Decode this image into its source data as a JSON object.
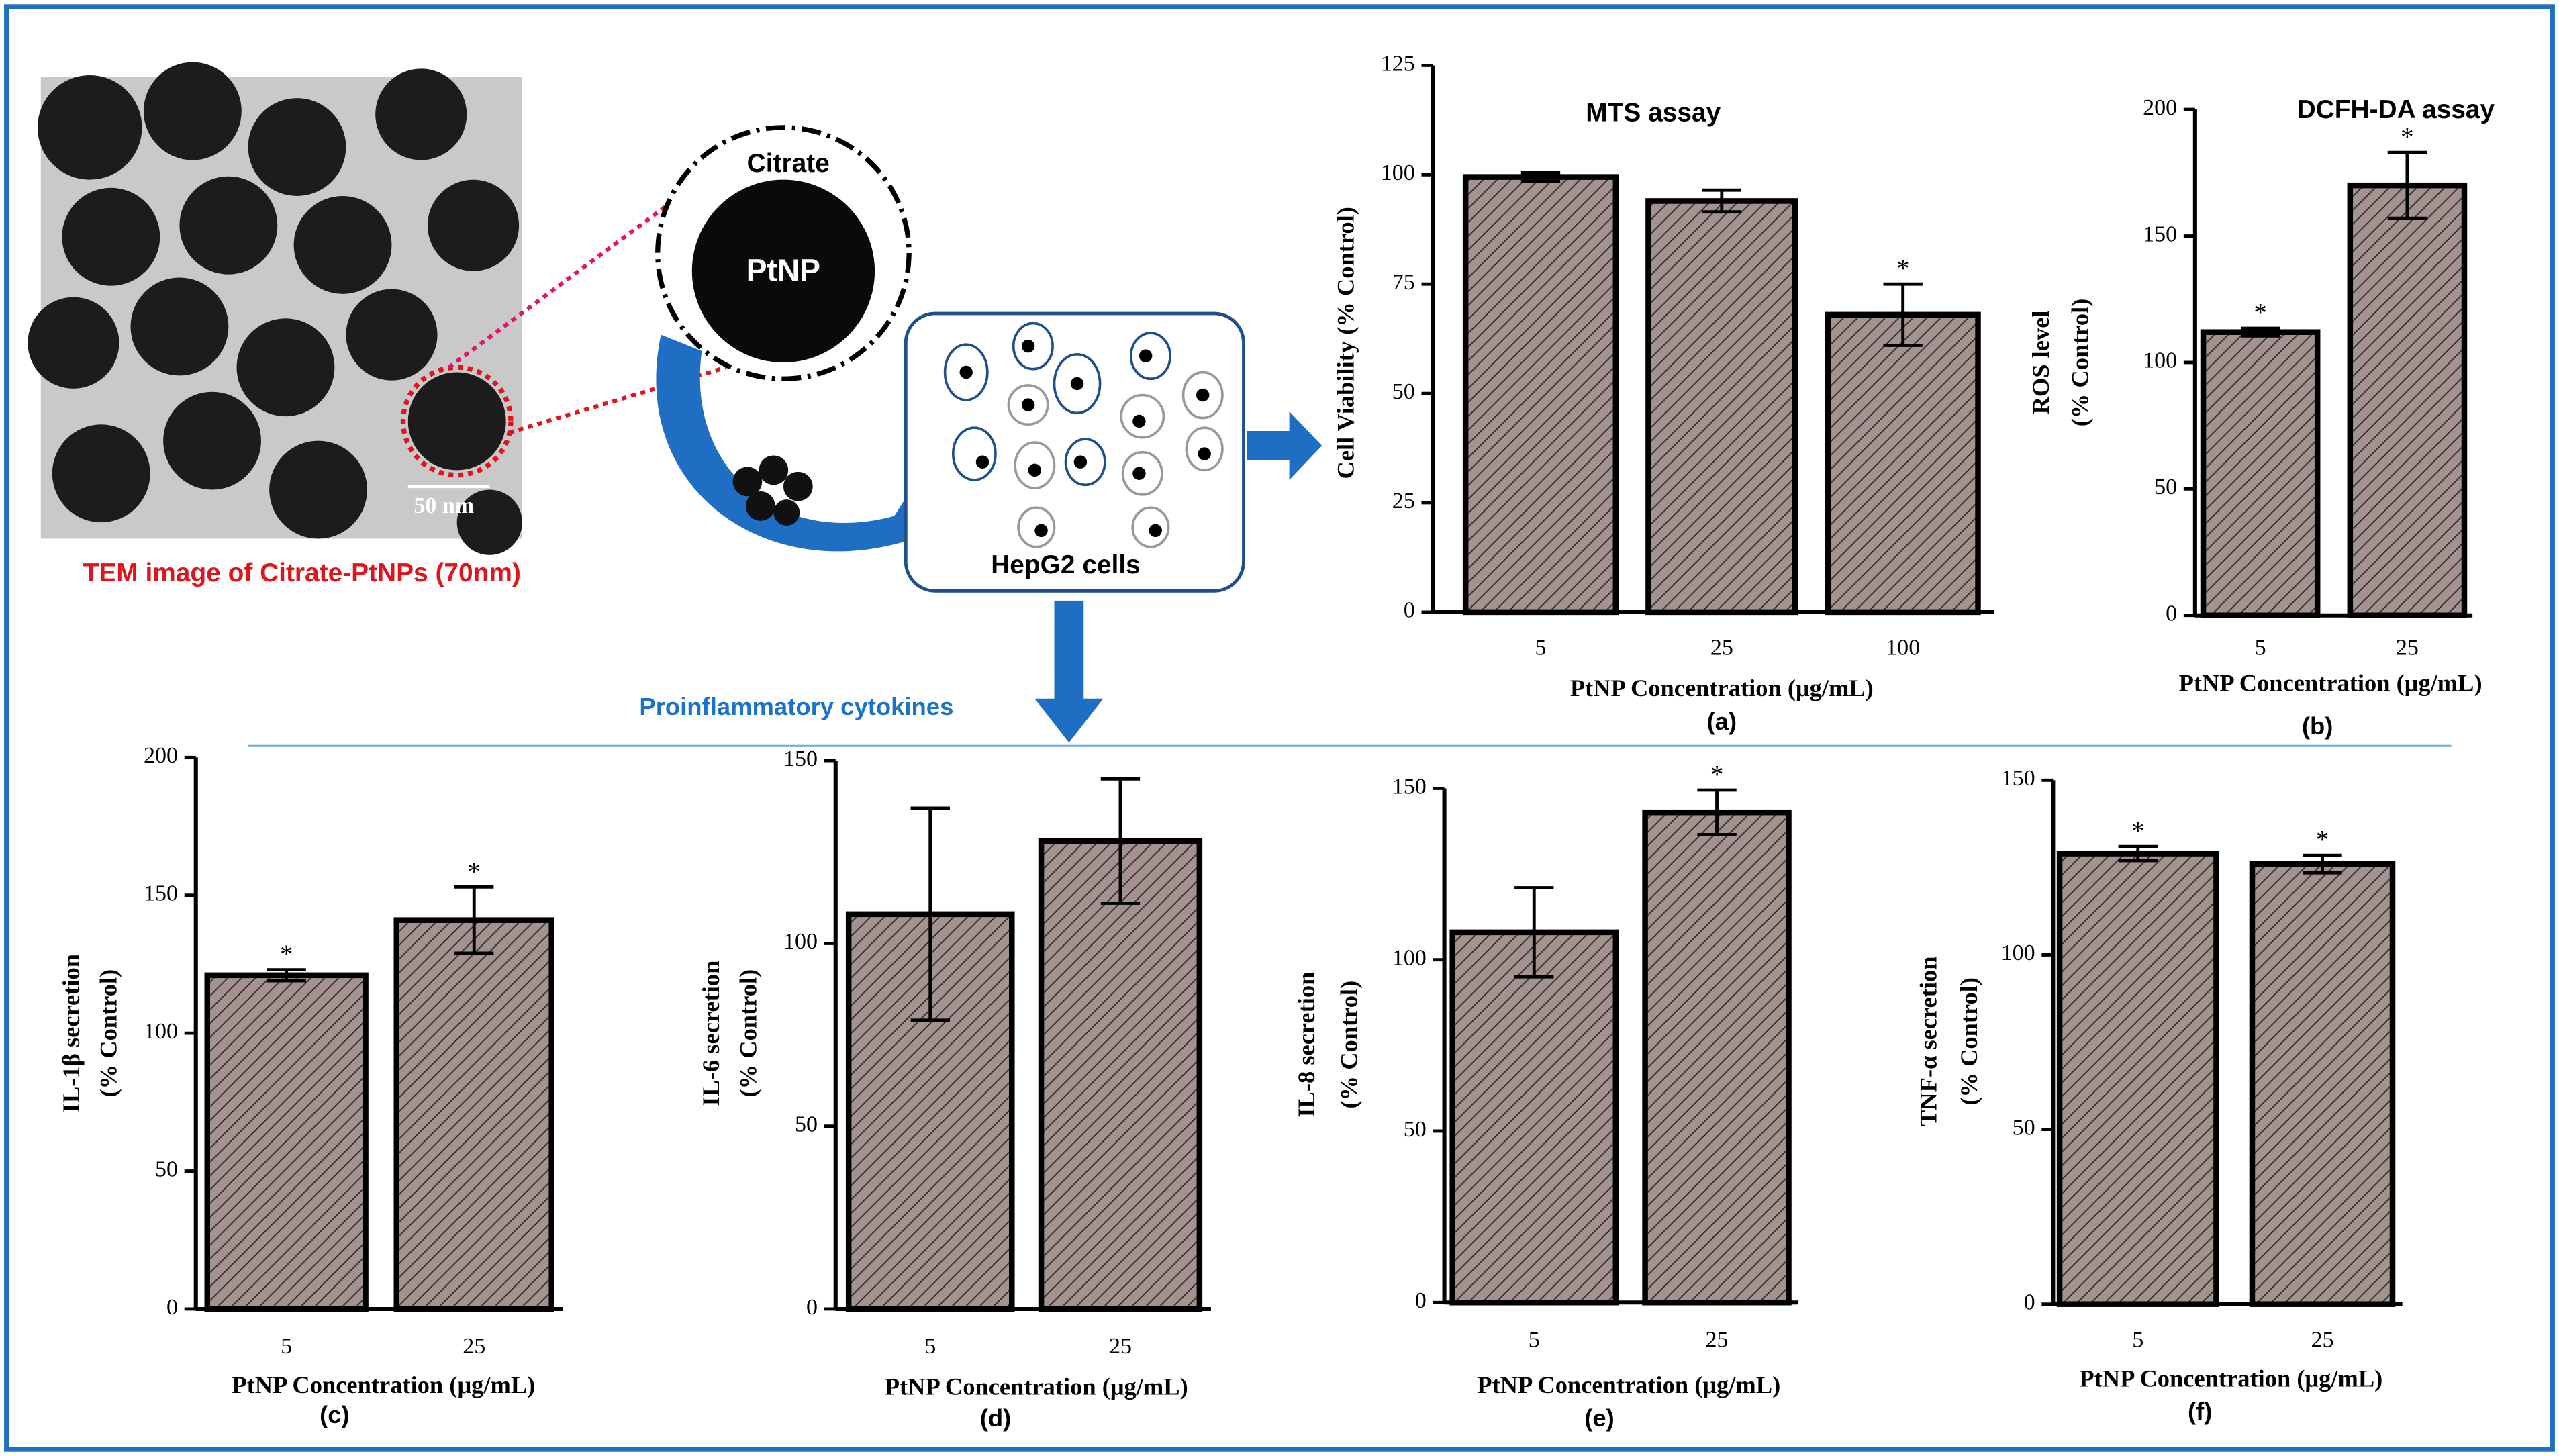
{
  "diagram": {
    "tem_caption": "TEM image of Citrate-PtNPs (70nm)",
    "scale_bar": "50 nm",
    "shell_label": "Citrate",
    "core_label": "PtNP",
    "cells_label": "HepG2 cells",
    "section_label": "Proinflammatory cytokines"
  },
  "chart_data": [
    {
      "type": "bar",
      "title": "MTS assay",
      "panel": "(a)",
      "ylabel": [
        "Cell Viability (% Control)"
      ],
      "xlabel": "PtNP Concentration (μg/mL)",
      "categories": [
        "5",
        "25",
        "100"
      ],
      "values": [
        99.5,
        94,
        68
      ],
      "errors": [
        1,
        2.5,
        7
      ],
      "annotations": [
        null,
        null,
        "*"
      ],
      "color": "#a29390",
      "ylim": [
        0,
        125
      ],
      "yticks": [
        0,
        25,
        50,
        75,
        100,
        125
      ]
    },
    {
      "type": "bar",
      "title": "DCFH-DA assay",
      "panel": "(b)",
      "ylabel": [
        "ROS level",
        "(% Control)"
      ],
      "xlabel": "PtNP Concentration (μg/mL)",
      "categories": [
        "5",
        "25"
      ],
      "values": [
        112,
        170
      ],
      "errors": [
        1.5,
        13
      ],
      "annotations": [
        "*",
        "*"
      ],
      "color": "#a29390",
      "ylim": [
        0,
        200
      ],
      "yticks": [
        0,
        50,
        100,
        150,
        200
      ]
    },
    {
      "type": "bar",
      "panel": "(c)",
      "ylabel": [
        "IL-1β secretion",
        "(% Control)"
      ],
      "xlabel": "PtNP Concentration (μg/mL)",
      "categories": [
        "5",
        "25"
      ],
      "values": [
        121,
        141
      ],
      "errors": [
        2,
        12
      ],
      "annotations": [
        "*",
        "*"
      ],
      "color": "#a29390",
      "ylim": [
        0,
        200
      ],
      "yticks": [
        0,
        50,
        100,
        150,
        200
      ]
    },
    {
      "type": "bar",
      "panel": "(d)",
      "ylabel": [
        "IL-6 secretion",
        "(% Control)"
      ],
      "xlabel": "PtNP Concentration (μg/mL)",
      "categories": [
        "5",
        "25"
      ],
      "values": [
        108,
        128
      ],
      "errors": [
        29,
        17
      ],
      "annotations": [
        null,
        null
      ],
      "color": "#a29390",
      "ylim": [
        0,
        150
      ],
      "yticks": [
        0,
        50,
        100,
        150
      ]
    },
    {
      "type": "bar",
      "panel": "(e)",
      "ylabel": [
        "IL-8 secretion",
        "(% Control)"
      ],
      "xlabel": "PtNP Concentration (μg/mL)",
      "categories": [
        "5",
        "25"
      ],
      "values": [
        108,
        143
      ],
      "errors": [
        13,
        6.5
      ],
      "annotations": [
        null,
        "*"
      ],
      "color": "#a29390",
      "ylim": [
        0,
        150
      ],
      "yticks": [
        0,
        50,
        100,
        150
      ]
    },
    {
      "type": "bar",
      "panel": "(f)",
      "ylabel": [
        "TNF-α secretion",
        "(% Control)"
      ],
      "xlabel": "PtNP Concentration (μg/mL)",
      "categories": [
        "5",
        "25"
      ],
      "values": [
        129,
        126
      ],
      "errors": [
        2,
        2.5
      ],
      "annotations": [
        "*",
        "*"
      ],
      "color": "#a29390",
      "ylim": [
        0,
        150
      ],
      "yticks": [
        0,
        50,
        100,
        150
      ]
    }
  ]
}
